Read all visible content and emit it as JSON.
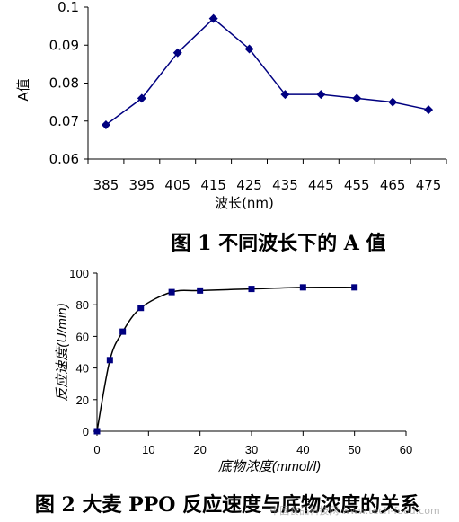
{
  "chart_data": [
    {
      "type": "line",
      "title": "图 1  不同波长下的 A 值",
      "xlabel": "波长(nm)",
      "ylabel": "A值",
      "categories": [
        "385",
        "395",
        "405",
        "415",
        "425",
        "435",
        "445",
        "455",
        "465",
        "475"
      ],
      "series": [
        {
          "values": [
            0.069,
            0.076,
            0.088,
            0.097,
            0.089,
            0.077,
            0.077,
            0.076,
            0.075,
            0.073
          ]
        }
      ],
      "ylim": [
        0.06,
        0.1
      ],
      "yticks": [
        "0.06",
        "0.07",
        "0.08",
        "0.09",
        "0.1"
      ],
      "grid": false,
      "marker": "diamond",
      "color": "#000080"
    },
    {
      "type": "line",
      "title": "图 2  大麦 PPO 反应速度与底物浓度的关系",
      "xlabel": "底物浓度(mmol/l)",
      "ylabel": "反应速度(U/min)",
      "x": [
        0,
        2.5,
        5,
        8.5,
        14.5,
        20,
        30,
        40,
        50
      ],
      "series": [
        {
          "values": [
            0,
            45,
            63,
            78,
            88,
            89,
            90,
            91,
            91
          ]
        }
      ],
      "xlim": [
        0,
        60
      ],
      "ylim": [
        0,
        100
      ],
      "xticks": [
        "0",
        "10",
        "20",
        "30",
        "40",
        "50",
        "60"
      ],
      "yticks": [
        "0",
        "20",
        "40",
        "60",
        "80",
        "100"
      ],
      "grid": false,
      "marker": "square",
      "color": "#000080"
    }
  ],
  "watermark": "中国食品科技网 www.tech-food.com"
}
